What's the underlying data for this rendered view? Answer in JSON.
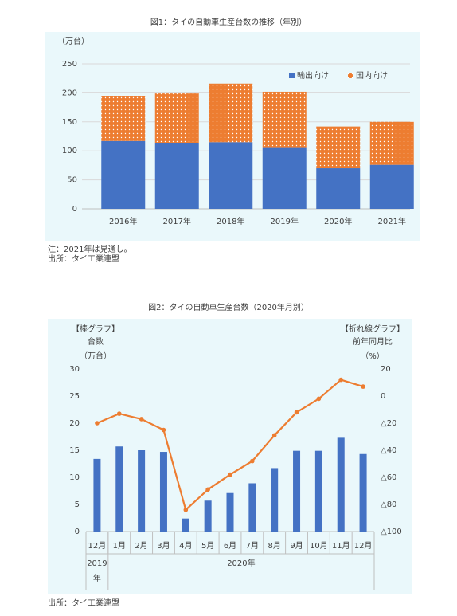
{
  "chart_data": [
    {
      "type": "bar",
      "stacked": true,
      "title": "図1：タイの自動車生産台数の推移（年別）",
      "y_label": "（万台）",
      "categories": [
        "2016年",
        "2017年",
        "2018年",
        "2019年",
        "2020年",
        "2021年"
      ],
      "series": [
        {
          "name": "輸出向け",
          "color": "#4472c4",
          "values": [
            117,
            114,
            115,
            105,
            70,
            76
          ]
        },
        {
          "name": "国内向け",
          "color": "#ed7d31",
          "pattern": "dots",
          "values": [
            78,
            85,
            101,
            97,
            72,
            74
          ]
        }
      ],
      "ylim": [
        0,
        250
      ],
      "yticks": [
        0,
        50,
        100,
        150,
        200,
        250
      ],
      "grid": true,
      "legend": "top-right",
      "notes": [
        "注：2021年は見通し。",
        "出所：タイ工業連盟"
      ]
    },
    {
      "type": "bar",
      "title": "図2：タイの自動車生産台数（2020年月別）",
      "y_label": [
        "【棒グラフ】",
        "台数",
        "（万台）"
      ],
      "y2_label": [
        "【折れ線グラフ】",
        "前年同月比",
        "（%）"
      ],
      "categories": [
        "12月",
        "1月",
        "2月",
        "3月",
        "4月",
        "5月",
        "6月",
        "7月",
        "8月",
        "9月",
        "10月",
        "11月",
        "12月"
      ],
      "x_groups": [
        "2019年",
        "2020年",
        "2020年",
        "2020年",
        "2020年",
        "2020年",
        "2020年",
        "2020年",
        "2020年",
        "2020年",
        "2020年",
        "2020年",
        "2020年"
      ],
      "series": [
        {
          "type": "bar",
          "color": "#4472c4",
          "values": [
            13.4,
            15.7,
            15.0,
            14.7,
            2.4,
            5.7,
            7.1,
            8.9,
            11.7,
            14.9,
            14.9,
            17.3,
            14.3
          ]
        },
        {
          "type": "line",
          "axis": "y2",
          "color": "#ed7d31",
          "values": [
            -20,
            -13,
            -17,
            -25,
            -84,
            -69,
            -58,
            -48,
            -29,
            -12,
            -2,
            12,
            7
          ]
        }
      ],
      "ylim": [
        0,
        30
      ],
      "yticks": [
        0,
        5,
        10,
        15,
        20,
        25,
        30
      ],
      "y2lim": [
        -100,
        20
      ],
      "y2ticks": [
        {
          "value": -100,
          "label": "△100"
        },
        {
          "value": -80,
          "label": "△80"
        },
        {
          "value": -60,
          "label": "△60"
        },
        {
          "value": -40,
          "label": "△40"
        },
        {
          "value": -20,
          "label": "△20"
        },
        0,
        20
      ],
      "source": "出所：タイ工業連盟"
    }
  ]
}
